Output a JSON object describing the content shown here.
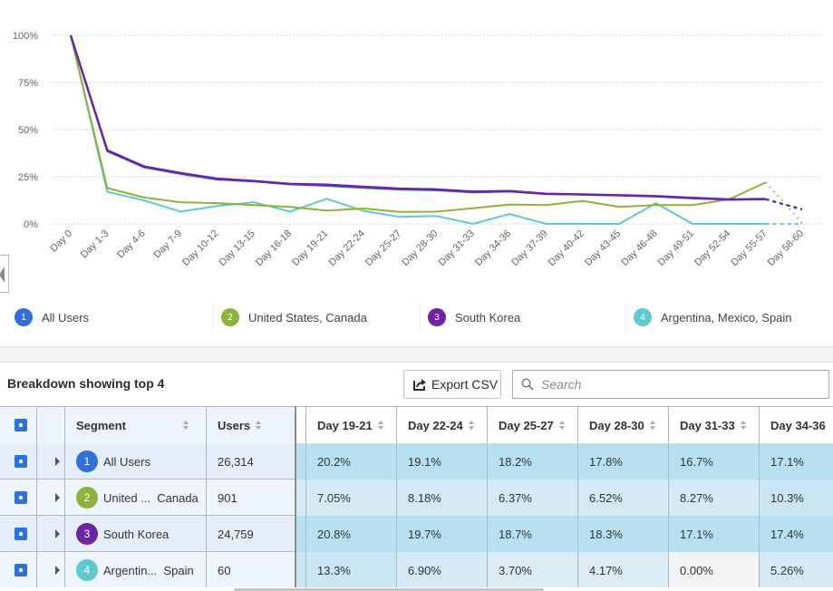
{
  "chart_data": {
    "type": "line",
    "title": "",
    "xlabel": "",
    "ylabel": "",
    "ylim": [
      0,
      100
    ],
    "yticks": [
      "0%",
      "25%",
      "50%",
      "75%",
      "100%"
    ],
    "grid": true,
    "categories": [
      "Day 0",
      "Day 1-3",
      "Day 4-6",
      "Day 7-9",
      "Day 10-12",
      "Day 13-15",
      "Day 16-18",
      "Day 19-21",
      "Day 22-24",
      "Day 25-27",
      "Day 28-30",
      "Day 31-33",
      "Day 34-36",
      "Day 37-39",
      "Day 40-42",
      "Day 43-45",
      "Day 46-48",
      "Day 49-51",
      "Day 52-54",
      "Day 55-57",
      "Day 58-60"
    ],
    "incomplete_from_index": 19,
    "series": [
      {
        "id": 1,
        "name": "All Users",
        "color": "#2e6fd8",
        "values": [
          100,
          38.5,
          30,
          26.5,
          23.5,
          22.5,
          21,
          20.2,
          19.1,
          18.2,
          17.8,
          16.7,
          17.1,
          15.8,
          15.5,
          15,
          14.5,
          13.5,
          12.8,
          13,
          7.5
        ]
      },
      {
        "id": 2,
        "name": "United States, Canada",
        "color": "#8db33a",
        "values": [
          100,
          19,
          14,
          11.5,
          11,
          10,
          9,
          7.05,
          8.18,
          6.37,
          6.52,
          8.27,
          10.3,
          10,
          12.2,
          9,
          10,
          10,
          13,
          22,
          0.5
        ]
      },
      {
        "id": 3,
        "name": "South Korea",
        "color": "#6c24a5",
        "values": [
          100,
          39,
          30.5,
          27,
          24,
          22.8,
          21.2,
          20.8,
          19.7,
          18.7,
          18.3,
          17.1,
          17.4,
          16,
          15.6,
          15.2,
          14.7,
          13.8,
          13,
          13.2,
          7.8
        ]
      },
      {
        "id": 4,
        "name": "Argentina, Mexico, Spain",
        "color": "#5ecad0",
        "values": [
          100,
          17,
          12.5,
          6.5,
          9.5,
          11.5,
          6.5,
          13.3,
          6.9,
          3.7,
          4.17,
          0,
          5.26,
          0,
          0,
          0,
          11,
          0,
          0,
          0,
          0
        ]
      }
    ]
  },
  "legend": [
    {
      "num": "1",
      "label": "All Users",
      "color": "#2e6fd8"
    },
    {
      "num": "2",
      "label": "United States, Canada",
      "color": "#8db33a"
    },
    {
      "num": "3",
      "label": "South Korea",
      "color": "#6c24a5"
    },
    {
      "num": "4",
      "label": "Argentina, Mexico, Spain",
      "color": "#5ecad0"
    }
  ],
  "toolbar": {
    "title": "Breakdown showing top 4",
    "export_label": "Export CSV",
    "search_placeholder": "Search"
  },
  "table": {
    "headers": {
      "segment": "Segment",
      "users": "Users",
      "days": [
        "Day 19-21",
        "Day 22-24",
        "Day 25-27",
        "Day 28-30",
        "Day 31-33",
        "Day 34-36"
      ]
    },
    "rows": [
      {
        "num": "1",
        "segment": "All Users",
        "color": "#2e6fd8",
        "users": "26,314",
        "values": [
          "20.2%",
          "19.1%",
          "18.2%",
          "17.8%",
          "16.7%",
          "17.1%"
        ]
      },
      {
        "num": "2",
        "segment": "United ...  Canada",
        "color": "#8db33a",
        "users": "901",
        "values": [
          "7.05%",
          "8.18%",
          "6.37%",
          "6.52%",
          "8.27%",
          "10.3%"
        ]
      },
      {
        "num": "3",
        "segment": "South Korea",
        "color": "#6c24a5",
        "users": "24,759",
        "values": [
          "20.8%",
          "19.7%",
          "18.7%",
          "18.3%",
          "17.1%",
          "17.4%"
        ]
      },
      {
        "num": "4",
        "segment": "Argentin...  Spain",
        "color": "#5ecad0",
        "users": "60",
        "values": [
          "13.3%",
          "6.90%",
          "3.70%",
          "4.17%",
          "0.00%",
          "5.26%"
        ]
      }
    ]
  }
}
